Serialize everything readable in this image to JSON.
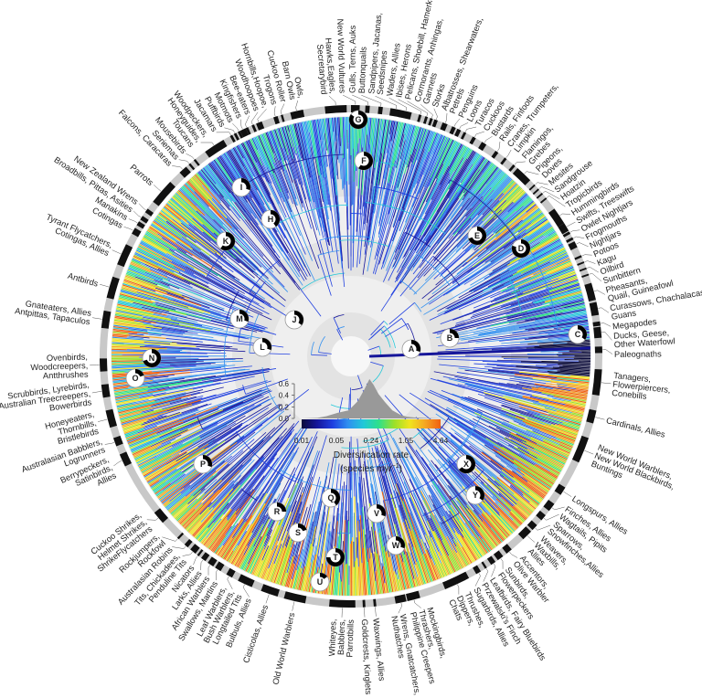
{
  "figure": {
    "clade_labels": [
      {
        "lines": [
          "New World Vultures"
        ]
      },
      {
        "lines": [
          "Gulls, Terns, Auks"
        ]
      },
      {
        "lines": [
          "Buttonquails"
        ]
      },
      {
        "lines": [
          "Sandpipers, Jacanas,",
          "Seedsnipes"
        ]
      },
      {
        "lines": [
          "Waders, Allies"
        ]
      },
      {
        "lines": [
          "Ibises, Herons"
        ]
      },
      {
        "lines": [
          "Pelicans, Shoebill, Hamerkop"
        ]
      },
      {
        "lines": [
          "Cormorants, Anhingas,",
          "Gannets"
        ]
      },
      {
        "lines": [
          "Storks"
        ]
      },
      {
        "lines": [
          "Albatrosses, Shearwaters,",
          "Petrels"
        ]
      },
      {
        "lines": [
          "Penguins"
        ]
      },
      {
        "lines": [
          "Loons"
        ]
      },
      {
        "lines": [
          "Turacos"
        ]
      },
      {
        "lines": [
          "Cuckoos"
        ]
      },
      {
        "lines": [
          "Bustards"
        ]
      },
      {
        "lines": [
          "Rails, Finfoots"
        ]
      },
      {
        "lines": [
          "Cranes, Trumpeters,",
          "Limpkin"
        ]
      },
      {
        "lines": [
          "Flamingos,",
          "Grebes"
        ]
      },
      {
        "lines": [
          "Pigeons,",
          "Doves"
        ]
      },
      {
        "lines": [
          "Mesites"
        ]
      },
      {
        "lines": [
          "Sandgrouse"
        ]
      },
      {
        "lines": [
          "Hoatzin"
        ]
      },
      {
        "lines": [
          "Tropicbirds"
        ]
      },
      {
        "lines": [
          "Hummingbirds"
        ]
      },
      {
        "lines": [
          "Swifts, Treeswifts"
        ]
      },
      {
        "lines": [
          "Owlet Nightjars"
        ]
      },
      {
        "lines": [
          "Frogmouths"
        ]
      },
      {
        "lines": [
          "Nightjars"
        ]
      },
      {
        "lines": [
          "Potoos"
        ]
      },
      {
        "lines": [
          "Kagu"
        ]
      },
      {
        "lines": [
          "Oilbird"
        ]
      },
      {
        "lines": [
          "Sunbittern"
        ]
      },
      {
        "lines": [
          "Pheasants,",
          "Quail, Guineafowl"
        ]
      },
      {
        "lines": [
          "Curassows, Chachalacas,",
          "Guans"
        ]
      },
      {
        "lines": [
          "Megapodes"
        ]
      },
      {
        "lines": [
          "Ducks, Geese,",
          "Other Waterfowl"
        ]
      },
      {
        "lines": [
          "Paleognaths"
        ]
      },
      {
        "lines": [
          "Tanagers,",
          "Flowerpiercers,",
          "Conebills"
        ]
      },
      {
        "lines": [
          "Cardinals, Allies"
        ]
      },
      {
        "lines": [
          "New World Warblers,",
          "New World Blackbirds,",
          "Buntings"
        ]
      },
      {
        "lines": [
          "Longspurs, Allies"
        ]
      },
      {
        "lines": [
          "Finches, Allies"
        ]
      },
      {
        "lines": [
          "Wagtails, Pipits"
        ]
      },
      {
        "lines": [
          "Sparrows,",
          "Snowfinches,Allies"
        ]
      },
      {
        "lines": [
          "Weavers,",
          "Waxbills,",
          "Allies"
        ]
      },
      {
        "lines": [
          "Accentors,",
          "Olive Warbler"
        ]
      },
      {
        "lines": [
          "Sunbirds,",
          "Flowerpeckers"
        ]
      },
      {
        "lines": [
          "Leafbirds, Fairy Bluebirds"
        ]
      },
      {
        "lines": [
          "Przewalski's Finch"
        ]
      },
      {
        "lines": [
          "Sugarbirds, Allies"
        ]
      },
      {
        "lines": [
          "Thrushes,",
          "Dippers,",
          "Chats"
        ]
      },
      {
        "lines": [
          "Mockingbirds,",
          "Thrashers,",
          "Philippine Creepers"
        ]
      },
      {
        "lines": [
          "Wrens, Gnatcatchers,",
          "Nuthatches"
        ]
      },
      {
        "lines": [
          "Waxwings, Allies"
        ]
      },
      {
        "lines": [
          "Goldcrests, Kinglets"
        ]
      },
      {
        "lines": [
          "Whiteyes,",
          "Babblers,",
          "Parrotbills"
        ]
      },
      {
        "lines": [
          "Old World Warblers"
        ]
      },
      {
        "lines": [
          "Cisticolas, Allies"
        ]
      },
      {
        "lines": [
          "Bulbuls, Allies"
        ]
      },
      {
        "lines": [
          "Leaf Warblers,",
          "Bush Warblers,",
          "Longtailed Tits"
        ]
      },
      {
        "lines": [
          "Swallows, Martins"
        ]
      },
      {
        "lines": [
          "African Warblers"
        ]
      },
      {
        "lines": [
          "Larks, Allies"
        ]
      },
      {
        "lines": [
          "Nicators"
        ]
      },
      {
        "lines": [
          "Tits, Chickadees,",
          "Penduline Tits"
        ]
      },
      {
        "lines": [
          "Australasian Robins"
        ]
      },
      {
        "lines": [
          "Rockjumpers,",
          "Rockfowl"
        ]
      },
      {
        "lines": [
          "Cuckoo Shrikes,",
          "Helmet Shrikes,",
          "ShrikeFlycatchers"
        ]
      },
      {
        "lines": [
          "Berrypeckers,",
          "Satinbirds,",
          "Allies"
        ]
      },
      {
        "lines": [
          "Australasian Babblers,",
          "Logrunners"
        ]
      },
      {
        "lines": [
          "Honeyeaters,",
          "Thornbills,",
          "Bristlebirds"
        ]
      },
      {
        "lines": [
          "Scrubbirds, Lyrebirds,",
          "Australian Treecreepers,",
          "Bowerbirds"
        ]
      },
      {
        "lines": [
          "Ovenbirds,",
          "Woodcreepers,",
          "Antthrushes"
        ]
      },
      {
        "lines": [
          "Gnateaters, Allies",
          "Antpittas, Tapaculos"
        ]
      },
      {
        "lines": [
          "Antbirds"
        ]
      },
      {
        "lines": [
          "Tyrant Flycatchers,",
          "Cotingas, Allies"
        ]
      },
      {
        "lines": [
          "Cotingas"
        ]
      },
      {
        "lines": [
          "Manakins"
        ]
      },
      {
        "lines": [
          "Broadbills, Pittas, Asities"
        ]
      },
      {
        "lines": [
          "New Zealand Wrens"
        ]
      },
      {
        "lines": [
          "Parrots"
        ]
      },
      {
        "lines": [
          "Falcons, Caracaras"
        ]
      },
      {
        "lines": [
          "Seriemas"
        ]
      },
      {
        "lines": [
          "Mousebirds"
        ]
      },
      {
        "lines": [
          "Woodpeckers,",
          "Honeyguides,",
          "Toucans"
        ]
      },
      {
        "lines": [
          "Jacamars"
        ]
      },
      {
        "lines": [
          "Puffbirds"
        ]
      },
      {
        "lines": [
          "Motmots"
        ]
      },
      {
        "lines": [
          "Kingfishers"
        ]
      },
      {
        "lines": [
          "Bee-eaters"
        ]
      },
      {
        "lines": [
          "Woodhoopoes"
        ]
      },
      {
        "lines": [
          "Hornbills,Hoopoe,"
        ]
      },
      {
        "lines": [
          "Trogons"
        ]
      },
      {
        "lines": [
          "Cuckoo Roller"
        ]
      },
      {
        "lines": [
          "Owls,",
          "Barn Owls"
        ]
      },
      {
        "lines": [
          "Hawks,Eagles,",
          "Secretarybird"
        ]
      }
    ],
    "nodes": [
      "A",
      "B",
      "C",
      "D",
      "E",
      "F",
      "G",
      "H",
      "I",
      "J",
      "K",
      "L",
      "M",
      "N",
      "O",
      "P",
      "Q",
      "R",
      "S",
      "T",
      "U",
      "V",
      "W",
      "X",
      "Y"
    ],
    "colors": {
      "ring": "#c8c8c8",
      "ring_segment": "#111111",
      "band_light": "#efefef",
      "band_dark": "#e3e3e3",
      "branch_base": "#2b2bb8",
      "rate_scale": [
        "#0b0b3a",
        "#16169a",
        "#1f3fe0",
        "#2f8ff0",
        "#22c8d8",
        "#2fe08a",
        "#9be02a",
        "#f0e41e",
        "#f5a623",
        "#f06010"
      ]
    }
  },
  "legend": {
    "density_yticks": [
      "0.6",
      "0.4",
      "0.2",
      "0.0"
    ],
    "rate_ticks": [
      "0.01",
      "0.05",
      "0.24",
      "1.05",
      "4.64"
    ],
    "title": "Diversification rate",
    "unit_prefix": "(species myr",
    "unit_exp": "−1",
    "unit_suffix": ")"
  },
  "chart_data": {
    "type": "area",
    "xlabel": "Diversification rate (species myr−1)",
    "x_ticks": [
      0.01,
      0.05,
      0.24,
      1.05,
      4.64
    ],
    "x_scale": "log",
    "ylim": [
      0,
      0.6
    ],
    "y_ticks": [
      0.0,
      0.2,
      0.4,
      0.6
    ],
    "x": [
      0.01,
      0.02,
      0.03,
      0.05,
      0.08,
      0.12,
      0.16,
      0.2,
      0.24,
      0.3,
      0.4,
      0.55,
      0.8,
      1.05,
      1.6,
      2.5,
      4.64
    ],
    "values": [
      0.0,
      0.01,
      0.04,
      0.1,
      0.14,
      0.3,
      0.5,
      0.68,
      0.58,
      0.42,
      0.28,
      0.14,
      0.06,
      0.03,
      0.015,
      0.008,
      0.0
    ]
  }
}
